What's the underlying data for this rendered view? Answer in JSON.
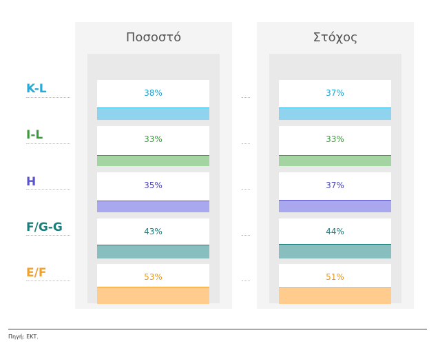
{
  "chart_data": {
    "type": "bar",
    "columns": [
      "Ποσοστό",
      "Στόχος"
    ],
    "categories": [
      "K-L",
      "I-L",
      "H",
      "F/G-G",
      "E/F"
    ],
    "series": [
      {
        "name": "Ποσοστό",
        "values": [
          38,
          33,
          35,
          43,
          53
        ],
        "labels": [
          "38%",
          "33%",
          "35%",
          "43%",
          "53%"
        ]
      },
      {
        "name": "Στόχος",
        "values": [
          37,
          33,
          37,
          44,
          51
        ],
        "labels": [
          "37%",
          "33%",
          "37%",
          "44%",
          "51%"
        ]
      }
    ],
    "category_colors": [
      "#29a9d6",
      "#3c9a3c",
      "#5b55cc",
      "#1a7e7b",
      "#f0a030"
    ],
    "bar_colors": [
      "#8fd3ef",
      "#a3d4a1",
      "#a9a8ee",
      "#88bebe",
      "#ffcc8e"
    ],
    "text_colors": [
      "#1ea5cf",
      "#3c9a3c",
      "#4a46c0",
      "#1a7e7b",
      "#e89a1e"
    ],
    "ylim": [
      0,
      100
    ]
  },
  "footer": {
    "source": "Πηγή: ΕΚΤ."
  }
}
